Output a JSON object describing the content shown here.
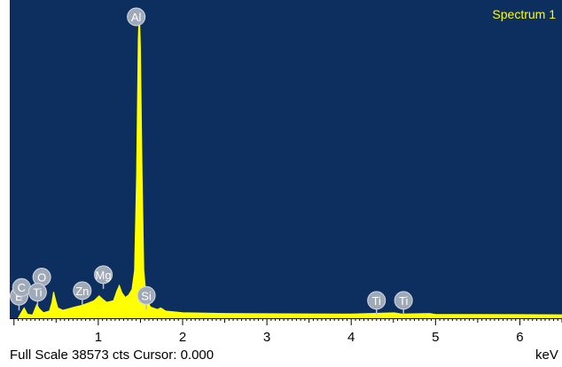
{
  "chart_data": {
    "type": "area",
    "series": [
      {
        "name": "Spectrum 1",
        "color": "#ffff00",
        "points": [
          [
            0.05,
            0
          ],
          [
            0.08,
            600
          ],
          [
            0.12,
            1300
          ],
          [
            0.16,
            500
          ],
          [
            0.22,
            400
          ],
          [
            0.27,
            1700
          ],
          [
            0.3,
            1200
          ],
          [
            0.35,
            700
          ],
          [
            0.42,
            900
          ],
          [
            0.45,
            2000
          ],
          [
            0.47,
            3300
          ],
          [
            0.49,
            2400
          ],
          [
            0.52,
            1300
          ],
          [
            0.58,
            1000
          ],
          [
            0.65,
            1200
          ],
          [
            0.72,
            1400
          ],
          [
            0.8,
            1600
          ],
          [
            0.88,
            1900
          ],
          [
            0.95,
            2200
          ],
          [
            1.01,
            2800
          ],
          [
            1.05,
            2400
          ],
          [
            1.1,
            2000
          ],
          [
            1.18,
            2200
          ],
          [
            1.22,
            3400
          ],
          [
            1.25,
            4100
          ],
          [
            1.28,
            3200
          ],
          [
            1.32,
            2600
          ],
          [
            1.36,
            2900
          ],
          [
            1.4,
            3600
          ],
          [
            1.43,
            6000
          ],
          [
            1.455,
            18000
          ],
          [
            1.475,
            35000
          ],
          [
            1.487,
            38573
          ],
          [
            1.5,
            34000
          ],
          [
            1.52,
            18000
          ],
          [
            1.54,
            6000
          ],
          [
            1.57,
            2500
          ],
          [
            1.62,
            1400
          ],
          [
            1.7,
            1100
          ],
          [
            1.74,
            1300
          ],
          [
            1.8,
            900
          ],
          [
            2.0,
            700
          ],
          [
            2.5,
            600
          ],
          [
            3.0,
            560
          ],
          [
            3.5,
            540
          ],
          [
            4.0,
            520
          ],
          [
            4.51,
            680
          ],
          [
            4.6,
            520
          ],
          [
            4.93,
            600
          ],
          [
            5.0,
            480
          ],
          [
            5.5,
            470
          ],
          [
            6.0,
            450
          ],
          [
            6.5,
            430
          ]
        ]
      }
    ],
    "peak_labels": [
      {
        "label": "B",
        "x": 0.06,
        "y": 1200
      },
      {
        "label": "C",
        "x": 0.09,
        "y": 2300
      },
      {
        "label": "O",
        "x": 0.33,
        "y": 3600
      },
      {
        "label": "Ti",
        "x": 0.28,
        "y": 1700
      },
      {
        "label": "Zn",
        "x": 0.81,
        "y": 1900
      },
      {
        "label": "Mg",
        "x": 1.06,
        "y": 3900
      },
      {
        "label": "Al",
        "x": 1.45,
        "y": 38573
      },
      {
        "label": "Si",
        "x": 1.57,
        "y": 1300
      },
      {
        "label": "Ti",
        "x": 4.3,
        "y": 680
      },
      {
        "label": "Ti",
        "x": 4.62,
        "y": 680
      }
    ],
    "x_ticks": [
      "1",
      "2",
      "3",
      "4",
      "5",
      "6"
    ],
    "xlabel": "keV",
    "xlim": [
      -0.05,
      6.5
    ],
    "ylim": [
      0,
      38573
    ],
    "background": "#0d2f60",
    "grid": false,
    "legend": "top-right"
  },
  "footer_text": "Full Scale 38573 cts Cursor: 0.000"
}
